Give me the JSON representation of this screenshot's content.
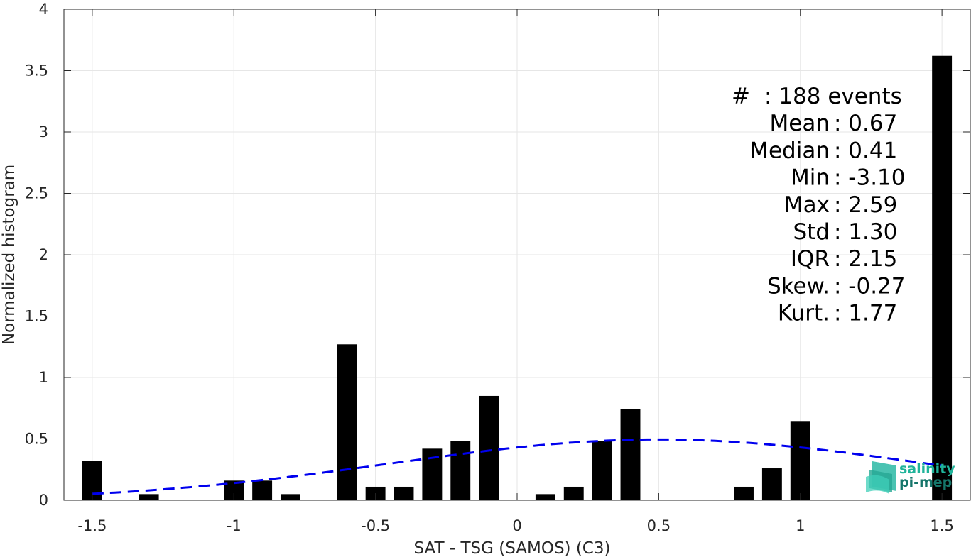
{
  "chart_data": {
    "type": "bar",
    "xlabel": "SAT - TSG (SAMOS) (C3)",
    "ylabel": "Normalized histogram",
    "xlim": [
      -1.6,
      1.6
    ],
    "ylim": [
      0,
      4
    ],
    "xticks": [
      -1.5,
      -1,
      -0.5,
      0,
      0.5,
      1,
      1.5
    ],
    "xtick_labels": [
      "-1.5",
      "-1",
      "-0.5",
      "0",
      "0.5",
      "1",
      "1.5"
    ],
    "yticks": [
      0,
      0.5,
      1,
      1.5,
      2,
      2.5,
      3,
      3.5,
      4
    ],
    "ytick_labels": [
      "0",
      "0.5",
      "1",
      "1.5",
      "2",
      "2.5",
      "3",
      "3.5",
      "4"
    ],
    "grid": true,
    "bar_width": 0.07,
    "bar_color": "#000000",
    "bars": [
      {
        "x": -1.5,
        "y": 0.32
      },
      {
        "x": -1.3,
        "y": 0.05
      },
      {
        "x": -1.0,
        "y": 0.16
      },
      {
        "x": -0.9,
        "y": 0.16
      },
      {
        "x": -0.8,
        "y": 0.05
      },
      {
        "x": -0.6,
        "y": 1.27
      },
      {
        "x": -0.5,
        "y": 0.11
      },
      {
        "x": -0.4,
        "y": 0.11
      },
      {
        "x": -0.3,
        "y": 0.42
      },
      {
        "x": -0.2,
        "y": 0.48
      },
      {
        "x": -0.1,
        "y": 0.85
      },
      {
        "x": 0.1,
        "y": 0.05
      },
      {
        "x": 0.2,
        "y": 0.11
      },
      {
        "x": 0.3,
        "y": 0.48
      },
      {
        "x": 0.4,
        "y": 0.74
      },
      {
        "x": 0.8,
        "y": 0.11
      },
      {
        "x": 0.9,
        "y": 0.26
      },
      {
        "x": 1.0,
        "y": 0.64
      },
      {
        "x": 1.5,
        "y": 3.62
      }
    ],
    "fit_curve": {
      "type": "gaussian",
      "mean": 0.5,
      "peak": 0.495,
      "color": "#0000ee",
      "x_range": [
        -1.5,
        1.5
      ],
      "points": [
        {
          "x": -1.5,
          "y": 0.05
        },
        {
          "x": -1.0,
          "y": 0.14
        },
        {
          "x": -0.5,
          "y": 0.29
        },
        {
          "x": 0.0,
          "y": 0.43
        },
        {
          "x": 0.5,
          "y": 0.495
        },
        {
          "x": 1.0,
          "y": 0.43
        },
        {
          "x": 1.5,
          "y": 0.29
        }
      ]
    },
    "stats": [
      {
        "label": "#",
        "value": ": 188 events"
      },
      {
        "label": "Mean",
        "value": ": 0.67"
      },
      {
        "label": "Median",
        "value": ": 0.41"
      },
      {
        "label": "Min",
        "value": ": -3.10"
      },
      {
        "label": "Max",
        "value": ": 2.59"
      },
      {
        "label": "Std",
        "value": ": 1.30"
      },
      {
        "label": "IQR",
        "value": ": 2.15"
      },
      {
        "label": "Skew.",
        "value": ": -0.27"
      },
      {
        "label": "Kurt.",
        "value": ": 1.77"
      }
    ]
  },
  "logo": {
    "line1": "salinity",
    "line2": "pi-mep",
    "color1": "#1fb39a",
    "color2": "#15756a"
  }
}
